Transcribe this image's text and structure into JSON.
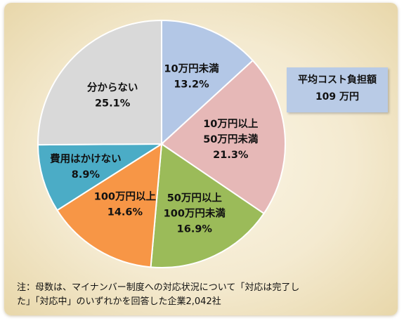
{
  "chart_data": {
    "type": "pie",
    "slices": [
      {
        "label_lines": [
          "10万円未満"
        ],
        "value": 13.2,
        "value_label": "13.2%",
        "color": "#b3c7e6"
      },
      {
        "label_lines": [
          "10万円以上",
          "50万円未満"
        ],
        "value": 21.3,
        "value_label": "21.3%",
        "color": "#e6b8b7"
      },
      {
        "label_lines": [
          "50万円以上",
          "100万円未満"
        ],
        "value": 16.9,
        "value_label": "16.9%",
        "color": "#9bbb59"
      },
      {
        "label_lines": [
          "100万円以上"
        ],
        "value": 14.6,
        "value_label": "14.6%",
        "color": "#f79646"
      },
      {
        "label_lines": [
          "費用はかけない"
        ],
        "value": 8.9,
        "value_label": "8.9%",
        "color": "#4bacc6"
      },
      {
        "label_lines": [
          "分からない"
        ],
        "value": 25.1,
        "value_label": "25.1%",
        "color": "#d9d9d9"
      }
    ]
  },
  "avg_box": {
    "title": "平均コスト負担額",
    "value": "109 万円"
  },
  "note": {
    "line1": "注：母数は、マイナンバー制度への対応状況について「対応は完了し",
    "line2": "た」「対応中」のいずれかを回答した企業2,042社"
  }
}
